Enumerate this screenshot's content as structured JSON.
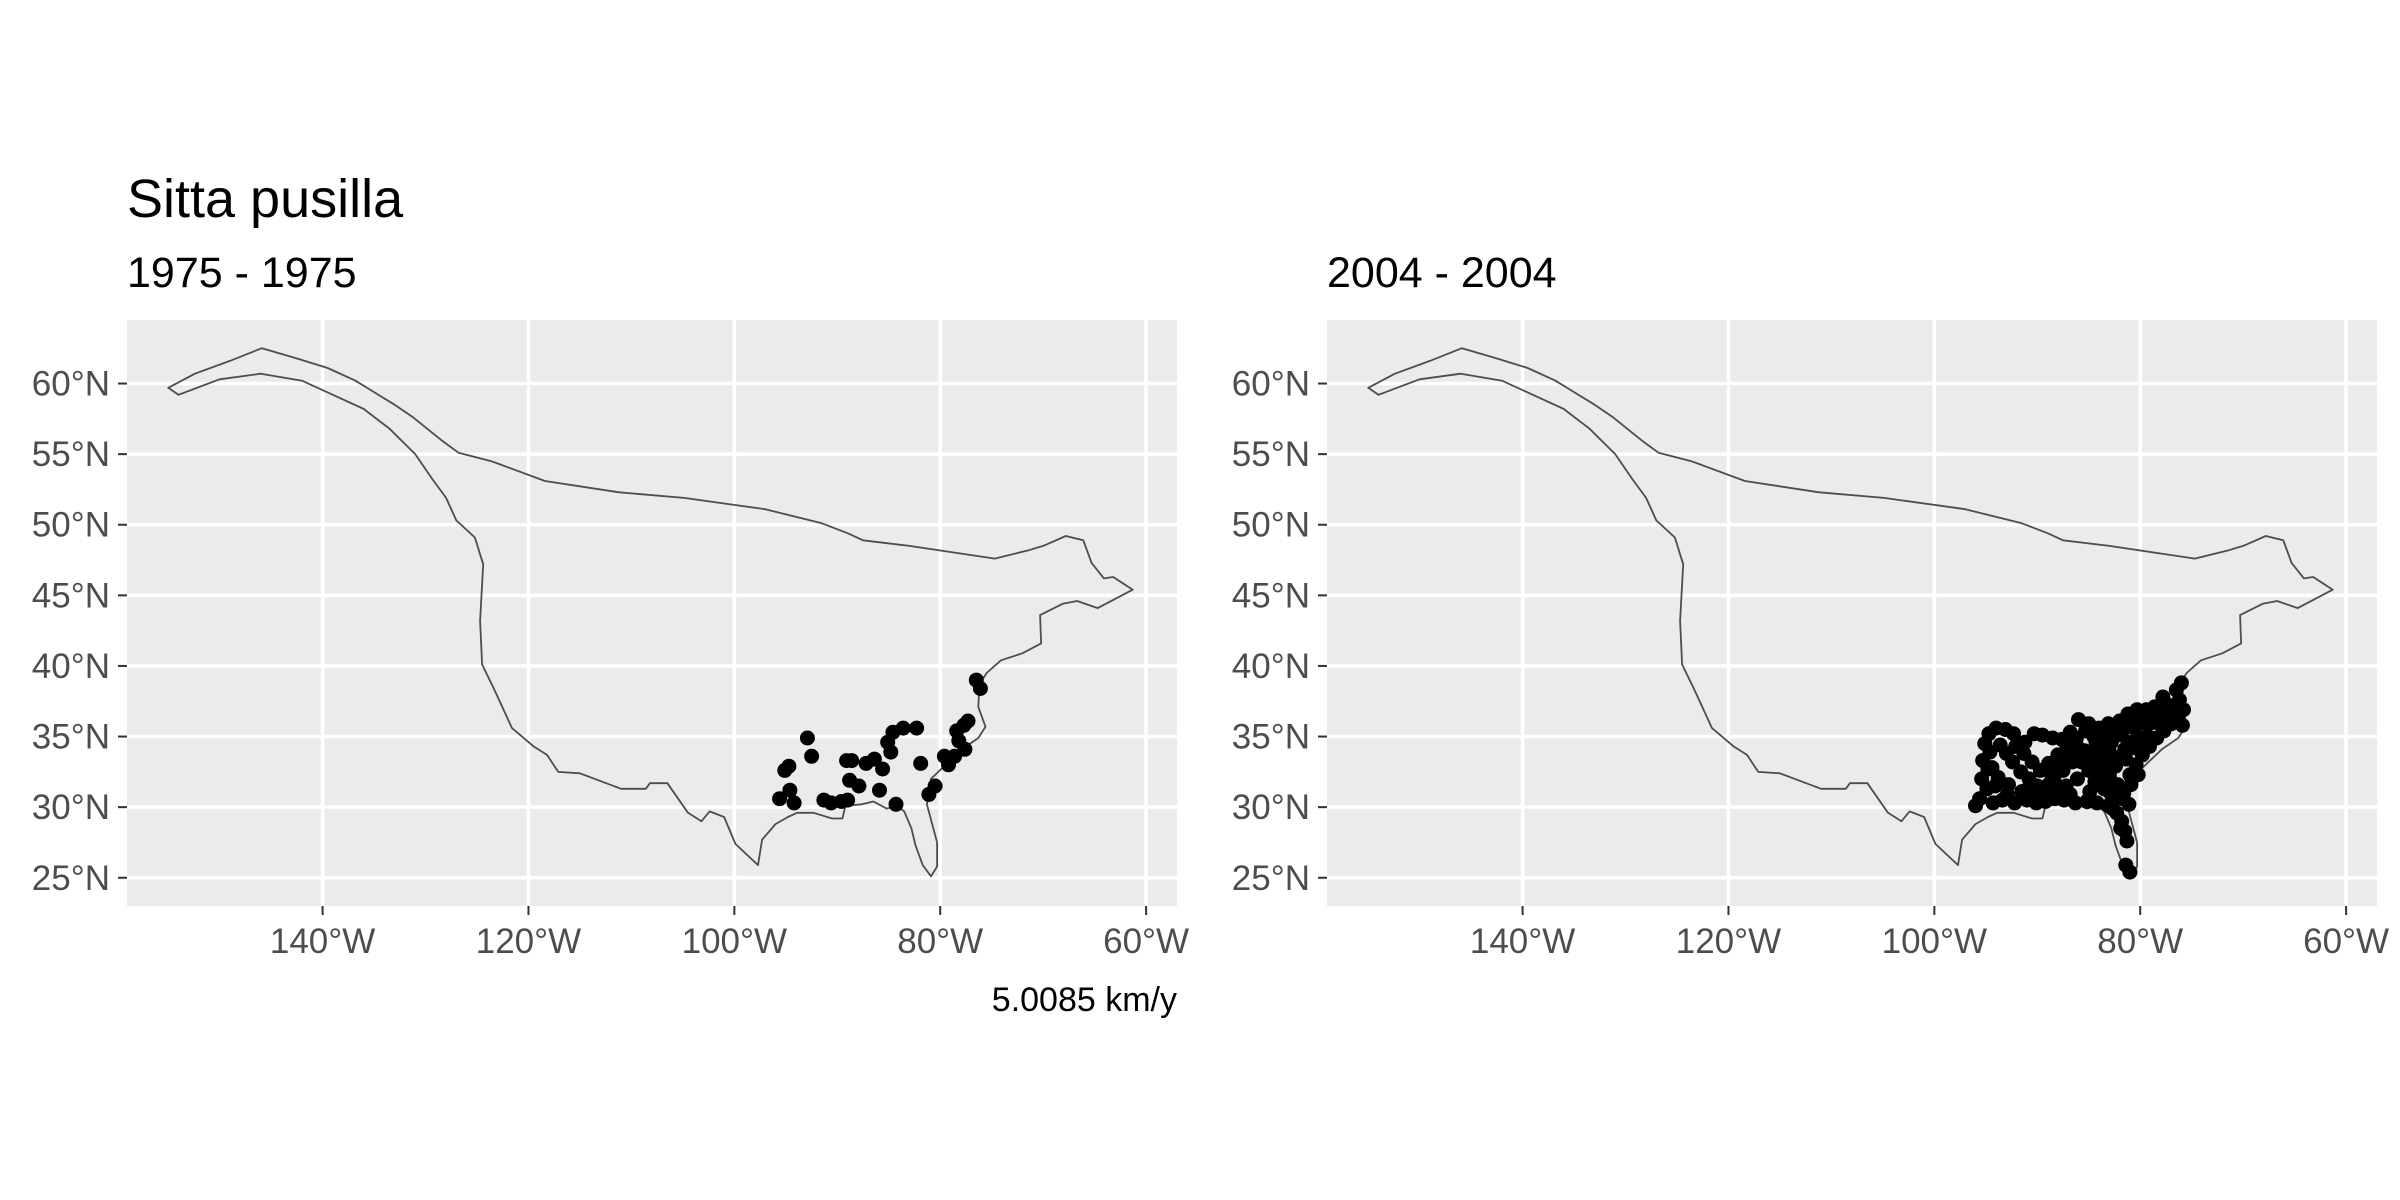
{
  "figure": {
    "title": "Sitta pusilla",
    "caption": "5.0085 km/y"
  },
  "chart_data": [
    {
      "type": "scatter",
      "subtitle": "1975 - 1975",
      "x_ticks": [
        {
          "value": -140,
          "label": "140°W"
        },
        {
          "value": -120,
          "label": "120°W"
        },
        {
          "value": -100,
          "label": "100°W"
        },
        {
          "value": -80,
          "label": "80°W"
        },
        {
          "value": -60,
          "label": "60°W"
        }
      ],
      "y_ticks": [
        {
          "value": 60,
          "label": "60°N"
        },
        {
          "value": 55,
          "label": "55°N"
        },
        {
          "value": 50,
          "label": "50°N"
        },
        {
          "value": 45,
          "label": "45°N"
        },
        {
          "value": 40,
          "label": "40°N"
        },
        {
          "value": 35,
          "label": "35°N"
        },
        {
          "value": 30,
          "label": "30°N"
        },
        {
          "value": 25,
          "label": "25°N"
        }
      ],
      "xlim": [
        -159,
        -57
      ],
      "ylim": [
        23,
        64.5
      ],
      "grid": true,
      "points": [
        [
          -76.5,
          39.0
        ],
        [
          -76.1,
          38.4
        ],
        [
          -77.3,
          36.1
        ],
        [
          -77.7,
          35.8
        ],
        [
          -78.4,
          35.4
        ],
        [
          -78.2,
          34.7
        ],
        [
          -77.6,
          34.1
        ],
        [
          -78.6,
          33.6
        ],
        [
          -79.2,
          33.0
        ],
        [
          -79.6,
          33.6
        ],
        [
          -80.5,
          31.5
        ],
        [
          -81.1,
          30.9
        ],
        [
          -81.9,
          33.1
        ],
        [
          -82.3,
          35.6
        ],
        [
          -83.6,
          35.6
        ],
        [
          -84.6,
          35.3
        ],
        [
          -85.1,
          34.6
        ],
        [
          -84.8,
          33.9
        ],
        [
          -86.4,
          33.4
        ],
        [
          -85.6,
          32.7
        ],
        [
          -85.9,
          31.2
        ],
        [
          -84.3,
          30.2
        ],
        [
          -87.9,
          31.5
        ],
        [
          -88.8,
          31.9
        ],
        [
          -89.1,
          33.3
        ],
        [
          -88.6,
          33.3
        ],
        [
          -89.6,
          30.4
        ],
        [
          -90.6,
          30.3
        ],
        [
          -91.3,
          30.5
        ],
        [
          -92.5,
          33.6
        ],
        [
          -92.9,
          34.9
        ],
        [
          -94.7,
          32.9
        ],
        [
          -95.1,
          32.6
        ],
        [
          -94.6,
          31.2
        ],
        [
          -94.2,
          30.3
        ],
        [
          -95.6,
          30.6
        ],
        [
          -89.0,
          30.5
        ],
        [
          -87.2,
          33.1
        ]
      ]
    },
    {
      "type": "scatter",
      "subtitle": "2004 - 2004",
      "x_ticks": [
        {
          "value": -140,
          "label": "140°W"
        },
        {
          "value": -120,
          "label": "120°W"
        },
        {
          "value": -100,
          "label": "100°W"
        },
        {
          "value": -80,
          "label": "80°W"
        },
        {
          "value": -60,
          "label": "60°W"
        }
      ],
      "y_ticks": [
        {
          "value": 60,
          "label": "60°N"
        },
        {
          "value": 55,
          "label": "55°N"
        },
        {
          "value": 50,
          "label": "50°N"
        },
        {
          "value": 45,
          "label": "45°N"
        },
        {
          "value": 40,
          "label": "40°N"
        },
        {
          "value": 35,
          "label": "35°N"
        },
        {
          "value": 30,
          "label": "30°N"
        },
        {
          "value": 25,
          "label": "25°N"
        }
      ],
      "xlim": [
        -159,
        -57
      ],
      "ylim": [
        23,
        64.5
      ],
      "grid": true,
      "points": [
        [
          -76.0,
          38.8
        ],
        [
          -76.5,
          38.3
        ],
        [
          -76.2,
          37.6
        ],
        [
          -75.8,
          36.9
        ],
        [
          -76.3,
          36.3
        ],
        [
          -75.9,
          35.8
        ],
        [
          -77.2,
          37.2
        ],
        [
          -77.9,
          36.8
        ],
        [
          -78.6,
          37.1
        ],
        [
          -79.4,
          36.9
        ],
        [
          -80.3,
          36.9
        ],
        [
          -81.2,
          36.6
        ],
        [
          -82.0,
          36.1
        ],
        [
          -83.1,
          35.9
        ],
        [
          -84.0,
          35.6
        ],
        [
          -85.0,
          35.9
        ],
        [
          -86.0,
          36.2
        ],
        [
          -86.8,
          35.3
        ],
        [
          -87.6,
          34.8
        ],
        [
          -88.5,
          34.9
        ],
        [
          -89.5,
          35.1
        ],
        [
          -90.3,
          35.2
        ],
        [
          -91.2,
          34.6
        ],
        [
          -92.3,
          35.2
        ],
        [
          -93.1,
          35.5
        ],
        [
          -94.0,
          35.6
        ],
        [
          -94.7,
          35.2
        ],
        [
          -95.1,
          34.5
        ],
        [
          -94.6,
          33.9
        ],
        [
          -95.3,
          33.3
        ],
        [
          -94.8,
          32.7
        ],
        [
          -95.4,
          32.0
        ],
        [
          -94.9,
          31.3
        ],
        [
          -95.6,
          30.6
        ],
        [
          -96.0,
          30.1
        ],
        [
          -94.3,
          30.3
        ],
        [
          -93.4,
          30.5
        ],
        [
          -92.2,
          30.3
        ],
        [
          -91.0,
          30.5
        ],
        [
          -90.1,
          30.3
        ],
        [
          -89.2,
          30.4
        ],
        [
          -88.3,
          30.6
        ],
        [
          -87.4,
          30.5
        ],
        [
          -86.3,
          30.3
        ],
        [
          -85.2,
          30.4
        ],
        [
          -84.2,
          30.3
        ],
        [
          -83.1,
          30.1
        ],
        [
          -82.3,
          29.6
        ],
        [
          -81.8,
          29.0
        ],
        [
          -81.5,
          28.3
        ],
        [
          -81.3,
          27.6
        ],
        [
          -81.4,
          25.9
        ],
        [
          -81.0,
          25.4
        ],
        [
          -93.6,
          34.4
        ],
        [
          -93.0,
          33.8
        ],
        [
          -92.4,
          33.2
        ],
        [
          -91.6,
          32.5
        ],
        [
          -90.8,
          32.0
        ],
        [
          -90.0,
          31.5
        ],
        [
          -89.3,
          31.0
        ],
        [
          -88.6,
          32.3
        ],
        [
          -87.8,
          33.1
        ],
        [
          -87.0,
          33.8
        ],
        [
          -86.2,
          34.4
        ],
        [
          -85.4,
          34.0
        ],
        [
          -84.6,
          33.4
        ],
        [
          -83.8,
          32.8
        ],
        [
          -83.0,
          32.2
        ],
        [
          -82.2,
          31.6
        ],
        [
          -81.6,
          31.0
        ],
        [
          -81.0,
          32.3
        ],
        [
          -80.4,
          33.0
        ],
        [
          -79.8,
          33.7
        ],
        [
          -79.1,
          34.3
        ],
        [
          -78.4,
          34.9
        ],
        [
          -77.7,
          35.4
        ],
        [
          -77.0,
          35.9
        ],
        [
          -80.8,
          34.6
        ],
        [
          -81.5,
          34.1
        ],
        [
          -82.2,
          33.5
        ],
        [
          -83.0,
          33.9
        ],
        [
          -83.7,
          34.5
        ],
        [
          -84.5,
          35.0
        ],
        [
          -85.3,
          35.4
        ],
        [
          -86.2,
          34.9
        ],
        [
          -87.1,
          34.3
        ],
        [
          -88.0,
          33.7
        ],
        [
          -88.9,
          33.1
        ],
        [
          -89.7,
          32.6
        ],
        [
          -90.5,
          33.2
        ],
        [
          -91.3,
          33.8
        ],
        [
          -92.1,
          34.3
        ],
        [
          -79.5,
          35.9
        ],
        [
          -78.7,
          36.3
        ],
        [
          -80.0,
          34.9
        ],
        [
          -80.6,
          35.6
        ],
        [
          -81.8,
          35.1
        ],
        [
          -82.8,
          34.6
        ],
        [
          -84.0,
          33.9
        ],
        [
          -85.0,
          32.6
        ],
        [
          -86.1,
          32.0
        ],
        [
          -87.2,
          31.5
        ],
        [
          -88.1,
          31.1
        ],
        [
          -89.9,
          30.9
        ],
        [
          -91.5,
          31.1
        ],
        [
          -92.8,
          31.6
        ],
        [
          -93.8,
          32.1
        ],
        [
          -94.4,
          32.8
        ],
        [
          -82.6,
          30.8
        ],
        [
          -83.5,
          31.3
        ],
        [
          -84.4,
          31.8
        ],
        [
          -85.7,
          33.2
        ],
        [
          -86.6,
          33.2
        ],
        [
          -87.5,
          32.6
        ],
        [
          -88.4,
          32.0
        ],
        [
          -80.9,
          31.6
        ],
        [
          -80.2,
          32.3
        ],
        [
          -81.1,
          30.2
        ],
        [
          -81.7,
          30.6
        ],
        [
          -82.9,
          31.0
        ],
        [
          -84.9,
          31.1
        ],
        [
          -86.8,
          30.9
        ],
        [
          -88.9,
          31.6
        ],
        [
          -90.9,
          31.3
        ],
        [
          -92.9,
          30.9
        ],
        [
          -94.1,
          31.5
        ],
        [
          -83.3,
          33.2
        ],
        [
          -82.4,
          32.9
        ],
        [
          -81.4,
          33.4
        ],
        [
          -80.5,
          34.2
        ],
        [
          -79.2,
          35.0
        ],
        [
          -78.1,
          35.9
        ],
        [
          -77.5,
          36.5
        ],
        [
          -76.7,
          37.0
        ],
        [
          -77.8,
          37.8
        ],
        [
          -78.8,
          36.0
        ],
        [
          -79.9,
          36.2
        ],
        [
          -81.0,
          35.8
        ],
        [
          -82.1,
          35.5
        ],
        [
          -83.2,
          35.2
        ],
        [
          -84.3,
          34.6
        ],
        [
          -85.2,
          33.8
        ],
        [
          -86.0,
          33.6
        ],
        [
          -84.1,
          32.4
        ],
        [
          -83.6,
          31.9
        ],
        [
          -82.7,
          29.9
        ],
        [
          -81.9,
          28.5
        ]
      ]
    }
  ],
  "outline": {
    "color": "#4d4d4d",
    "coords": [
      [
        -155,
        59.7
      ],
      [
        -154,
        59.2
      ],
      [
        -150,
        60.3
      ],
      [
        -146,
        60.7
      ],
      [
        -142,
        60.2
      ],
      [
        -139,
        59.2
      ],
      [
        -136,
        58.2
      ],
      [
        -133.5,
        56.8
      ],
      [
        -131,
        55
      ],
      [
        -129.3,
        53.2
      ],
      [
        -128,
        51.9
      ],
      [
        -127,
        50.3
      ],
      [
        -125.2,
        49.1
      ],
      [
        -124.4,
        47.2
      ],
      [
        -124.7,
        43.2
      ],
      [
        -124.5,
        40.1
      ],
      [
        -123.3,
        38.3
      ],
      [
        -121.6,
        35.6
      ],
      [
        -119.5,
        34.3
      ],
      [
        -118.2,
        33.7
      ],
      [
        -117.1,
        32.5
      ],
      [
        -115,
        32.4
      ],
      [
        -111,
        31.3
      ],
      [
        -108.6,
        31.3
      ],
      [
        -108.2,
        31.7
      ],
      [
        -106.5,
        31.7
      ],
      [
        -104.5,
        29.6
      ],
      [
        -103.2,
        29
      ],
      [
        -102.4,
        29.7
      ],
      [
        -101,
        29.3
      ],
      [
        -99.9,
        27.4
      ],
      [
        -97.7,
        25.9
      ],
      [
        -97.3,
        27.7
      ],
      [
        -96,
        28.8
      ],
      [
        -94.8,
        29.3
      ],
      [
        -93.9,
        29.6
      ],
      [
        -92.3,
        29.6
      ],
      [
        -90.5,
        29.2
      ],
      [
        -89.5,
        29.2
      ],
      [
        -89.2,
        30.1
      ],
      [
        -87.6,
        30.2
      ],
      [
        -86.5,
        30.4
      ],
      [
        -85.2,
        29.9
      ],
      [
        -84.2,
        30.1
      ],
      [
        -83.5,
        29.7
      ],
      [
        -82.8,
        28.5
      ],
      [
        -82.4,
        27.3
      ],
      [
        -81.7,
        25.9
      ],
      [
        -80.9,
        25.1
      ],
      [
        -80.3,
        25.8
      ],
      [
        -80.3,
        27.5
      ],
      [
        -81.3,
        30.2
      ],
      [
        -80.9,
        32
      ],
      [
        -79.2,
        33.2
      ],
      [
        -77.9,
        34.1
      ],
      [
        -76.3,
        34.9
      ],
      [
        -75.6,
        35.7
      ],
      [
        -76.3,
        37.1
      ],
      [
        -76.2,
        38.7
      ],
      [
        -75.5,
        39.5
      ],
      [
        -74.1,
        40.4
      ],
      [
        -72,
        40.9
      ],
      [
        -70.2,
        41.6
      ],
      [
        -70.3,
        43.6
      ],
      [
        -68.1,
        44.4
      ],
      [
        -66.7,
        44.6
      ],
      [
        -64.7,
        44.1
      ],
      [
        -61.3,
        45.4
      ],
      [
        -63.2,
        46.3
      ],
      [
        -64.1,
        46.2
      ],
      [
        -65.3,
        47.3
      ],
      [
        -66.1,
        48.9
      ],
      [
        -67.8,
        49.2
      ],
      [
        -70,
        48.5
      ],
      [
        -71.4,
        48.2
      ],
      [
        -74.7,
        47.6
      ],
      [
        -83,
        48.5
      ],
      [
        -87.5,
        48.9
      ],
      [
        -89,
        49.4
      ],
      [
        -91.5,
        50.1
      ],
      [
        -97,
        51.1
      ],
      [
        -104.9,
        51.9
      ],
      [
        -111.2,
        52.3
      ],
      [
        -118.4,
        53.1
      ],
      [
        -123.6,
        54.5
      ],
      [
        -126.8,
        55.1
      ],
      [
        -128.3,
        55.9
      ],
      [
        -131.2,
        57.6
      ],
      [
        -133,
        58.5
      ],
      [
        -134.8,
        59.3
      ],
      [
        -136.8,
        60.2
      ],
      [
        -139.5,
        61.1
      ],
      [
        -142.6,
        61.8
      ],
      [
        -145.9,
        62.5
      ],
      [
        -149,
        61.6
      ],
      [
        -152.4,
        60.7
      ],
      [
        -155,
        59.7
      ]
    ]
  }
}
